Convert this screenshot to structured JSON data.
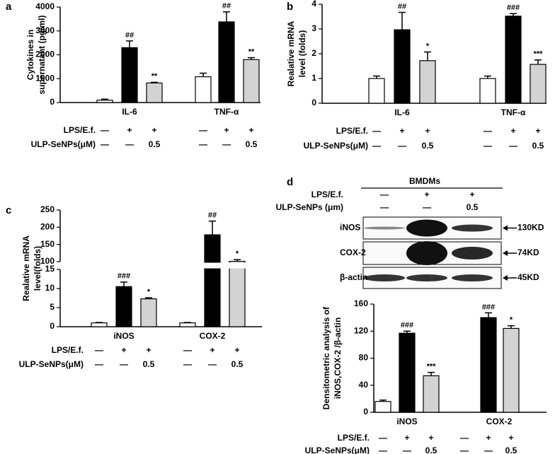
{
  "chart_data": [
    {
      "type": "bar",
      "panel": "a",
      "ylabel": [
        "Cytokines in",
        "supernatant (pg/ml)"
      ],
      "categories": [
        "IL-6",
        "TNF-α"
      ],
      "ylim": [
        0,
        4000
      ],
      "yticks": [
        0,
        1000,
        2000,
        3000,
        4000
      ],
      "series": [
        {
          "color": "#ffffff",
          "values": [
            100,
            1080
          ],
          "errors": [
            40,
            150
          ],
          "annotations": [
            null,
            null
          ]
        },
        {
          "color": "#000000",
          "values": [
            2300,
            3380
          ],
          "errors": [
            280,
            420
          ],
          "annotations": [
            "##",
            "##"
          ]
        },
        {
          "color": "#d3d3d3",
          "values": [
            820,
            1800
          ],
          "errors": [
            30,
            80
          ],
          "annotations": [
            "**",
            "**"
          ]
        }
      ],
      "conditions": [
        {
          "label": "LPS/E.f.",
          "entries": [
            "—",
            "+",
            "+",
            "—",
            "+",
            "+"
          ]
        },
        {
          "label": "ULP-SeNPs(μM)",
          "entries": [
            "—",
            "—",
            "0.5",
            "—",
            "—",
            "0.5"
          ]
        }
      ]
    },
    {
      "type": "bar",
      "panel": "b",
      "ylabel": [
        "Realative mRNA",
        "level (folds)"
      ],
      "categories": [
        "IL-6",
        "TNF-α"
      ],
      "ylim": [
        0,
        4
      ],
      "yticks": [
        0,
        1,
        2,
        3,
        4
      ],
      "series": [
        {
          "color": "#ffffff",
          "values": [
            1.0,
            1.0
          ],
          "errors": [
            0.1,
            0.1
          ],
          "annotations": [
            null,
            null
          ]
        },
        {
          "color": "#000000",
          "values": [
            2.97,
            3.52
          ],
          "errors": [
            0.7,
            0.1
          ],
          "annotations": [
            "##",
            "###"
          ]
        },
        {
          "color": "#d3d3d3",
          "values": [
            1.72,
            1.57
          ],
          "errors": [
            0.35,
            0.18
          ],
          "annotations": [
            "*",
            "***"
          ]
        }
      ],
      "conditions": [
        {
          "label": "LPS/E.f.",
          "entries": [
            "—",
            "+",
            "+",
            "—",
            "+",
            "+"
          ]
        },
        {
          "label": "ULP-SeNPs(μM)",
          "entries": [
            "—",
            "—",
            "0.5",
            "—",
            "—",
            "0.5"
          ]
        }
      ]
    },
    {
      "type": "bar",
      "panel": "c",
      "ylabel": [
        "Realative mRNA",
        "level(folds)"
      ],
      "categories": [
        "iNOS",
        "COX-2"
      ],
      "ylim": [
        0,
        250
      ],
      "ybreak": [
        15,
        100
      ],
      "yticks": [
        0,
        5,
        10,
        15,
        100,
        150,
        200,
        250
      ],
      "series": [
        {
          "color": "#ffffff",
          "values": [
            1.0,
            1.0
          ],
          "errors": [
            0.1,
            0.1
          ],
          "annotations": [
            null,
            null
          ]
        },
        {
          "color": "#000000",
          "values": [
            10.5,
            178
          ],
          "errors": [
            1.2,
            40
          ],
          "annotations": [
            "###",
            "##"
          ]
        },
        {
          "color": "#d3d3d3",
          "values": [
            7.3,
            101
          ],
          "errors": [
            0.3,
            5
          ],
          "annotations": [
            "*",
            "*"
          ]
        }
      ],
      "conditions": [
        {
          "label": "LPS/E.f.",
          "entries": [
            "—",
            "+",
            "+",
            "—",
            "+",
            "+"
          ]
        },
        {
          "label": "ULP-SeNPs(μM)",
          "entries": [
            "—",
            "—",
            "0.5",
            "—",
            "—",
            "0.5"
          ]
        }
      ]
    },
    {
      "type": "bar",
      "ylabel": [
        "Densitometric analysis of",
        "iNOS,COX-2 /β-actin"
      ],
      "categories": [
        "iNOS",
        "COX-2"
      ],
      "ylim": [
        0,
        160
      ],
      "yticks": [
        0,
        40,
        80,
        120,
        160
      ],
      "series": [
        {
          "color": "#ffffff",
          "values": [
            16,
            null
          ],
          "errors": [
            2,
            null
          ],
          "annotations": [
            null,
            null
          ]
        },
        {
          "color": "#000000",
          "values": [
            117,
            140
          ],
          "errors": [
            3,
            7
          ],
          "annotations": [
            "###",
            "###"
          ]
        },
        {
          "color": "#d3d3d3",
          "values": [
            54,
            124
          ],
          "errors": [
            5,
            4
          ],
          "annotations": [
            "***",
            "*"
          ]
        }
      ],
      "conditions": [
        {
          "label": "LPS/E.f.",
          "entries": [
            "—",
            "+",
            "+",
            "—",
            "+",
            "+"
          ]
        },
        {
          "label": "ULP-SeNPs(μM)",
          "entries": [
            "—",
            "—",
            "0.5",
            "—",
            "—",
            "0.5"
          ]
        }
      ]
    }
  ],
  "blot": {
    "panel": "d",
    "title": "BMDMs",
    "conditions": [
      {
        "label": "LPS/E.f.",
        "entries": [
          "—",
          "+",
          "+"
        ]
      },
      {
        "label": "ULP-SeNPs (μm)",
        "entries": [
          "—",
          "—",
          "0.5"
        ]
      }
    ],
    "bands": [
      {
        "label": "iNOS",
        "size": "130KD"
      },
      {
        "label": "COX-2",
        "size": "74KD"
      },
      {
        "label": "β-actin",
        "size": "45KD"
      }
    ]
  }
}
